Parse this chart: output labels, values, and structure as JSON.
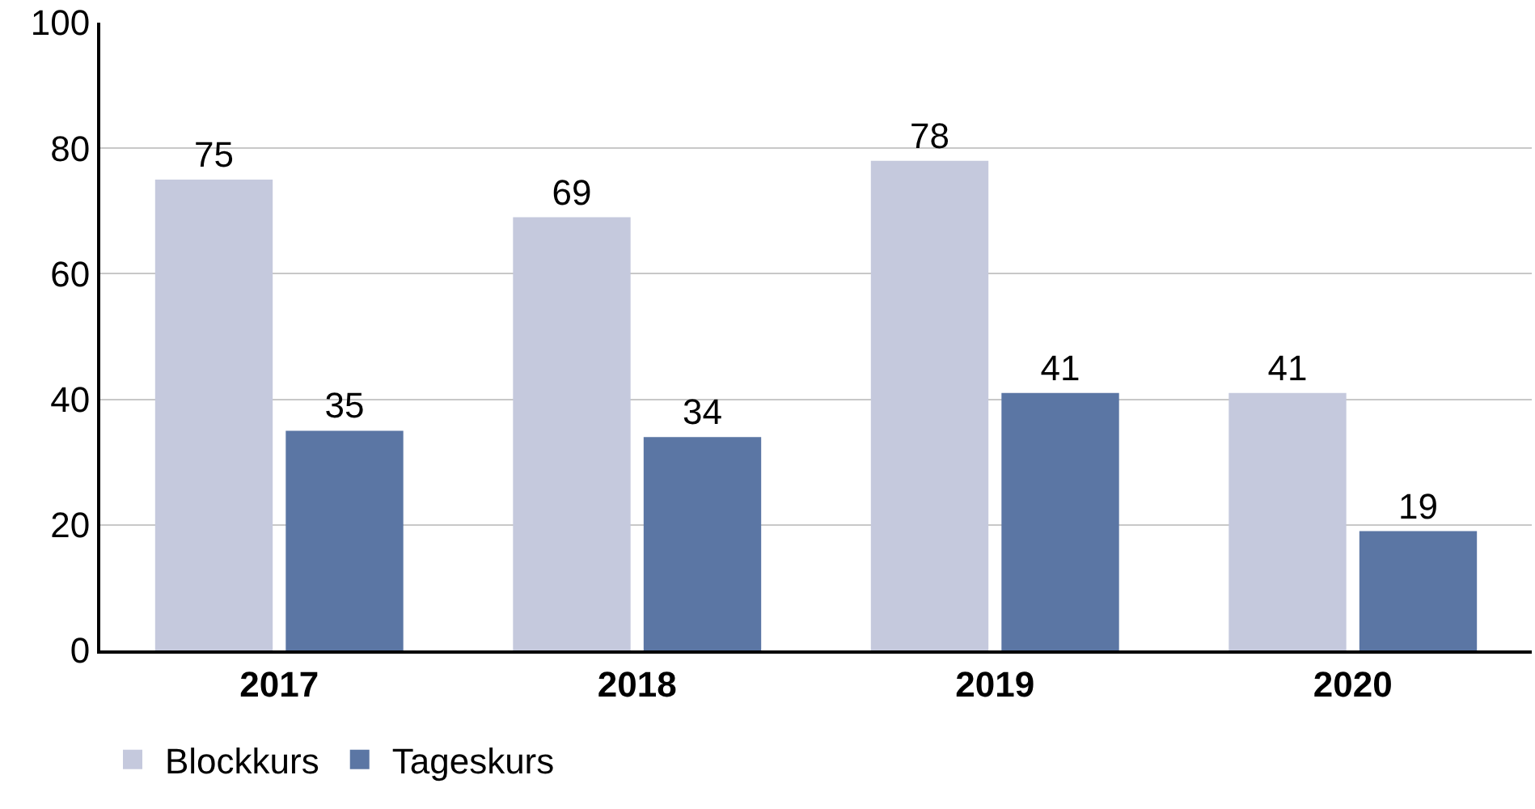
{
  "chart_data": {
    "type": "bar",
    "categories": [
      "2017",
      "2018",
      "2019",
      "2020"
    ],
    "series": [
      {
        "name": "Blockkurs",
        "color": "#c5c9dd",
        "values": [
          75,
          69,
          78,
          41
        ]
      },
      {
        "name": "Tageskurs",
        "color": "#5b76a4",
        "values": [
          35,
          34,
          41,
          19
        ]
      }
    ],
    "ylim": [
      0,
      100
    ],
    "yticks": [
      0,
      20,
      40,
      60,
      80,
      100
    ],
    "grid": "y",
    "legend": "bottom left",
    "data_labels": true
  }
}
